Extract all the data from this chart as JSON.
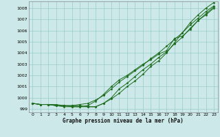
{
  "xlabel": "Graphe pression niveau de la mer (hPa)",
  "bg_color": "#cce8e8",
  "grid_color": "#99cccc",
  "line_color": "#1a6b1a",
  "xlim": [
    -0.5,
    23.5
  ],
  "ylim": [
    998.7,
    1008.6
  ],
  "yticks": [
    999,
    1000,
    1001,
    1002,
    1003,
    1004,
    1005,
    1006,
    1007,
    1008
  ],
  "xticks": [
    0,
    1,
    2,
    3,
    4,
    5,
    6,
    7,
    8,
    9,
    10,
    11,
    12,
    13,
    14,
    15,
    16,
    17,
    18,
    19,
    20,
    21,
    22,
    23
  ],
  "series": [
    [
      999.5,
      999.4,
      999.4,
      999.4,
      999.3,
      999.3,
      999.4,
      999.5,
      999.8,
      1000.2,
      1000.8,
      1001.4,
      1001.9,
      1002.4,
      1002.9,
      1003.5,
      1004.0,
      1004.6,
      1005.2,
      1005.8,
      1006.5,
      1007.1,
      1007.7,
      1008.2
    ],
    [
      999.5,
      999.4,
      999.4,
      999.3,
      999.3,
      999.3,
      999.3,
      999.2,
      999.2,
      999.5,
      1000.0,
      1000.8,
      1001.3,
      1001.9,
      1002.5,
      1003.0,
      1003.6,
      1004.1,
      1004.8,
      1005.4,
      1006.2,
      1006.9,
      1007.4,
      1008.0
    ],
    [
      999.5,
      999.4,
      999.4,
      999.3,
      999.2,
      999.2,
      999.2,
      999.3,
      999.7,
      1000.3,
      1001.0,
      1001.6,
      1002.0,
      1002.5,
      1003.0,
      1003.4,
      1003.9,
      1004.2,
      1005.3,
      1005.5,
      1006.1,
      1006.9,
      1007.5,
      1008.1
    ],
    [
      999.5,
      999.4,
      999.4,
      999.3,
      999.3,
      999.2,
      999.2,
      999.2,
      999.2,
      999.5,
      999.9,
      1000.4,
      1001.0,
      1001.5,
      1002.1,
      1002.8,
      1003.3,
      1004.0,
      1004.9,
      1005.8,
      1006.7,
      1007.4,
      1008.0,
      1008.5
    ]
  ]
}
